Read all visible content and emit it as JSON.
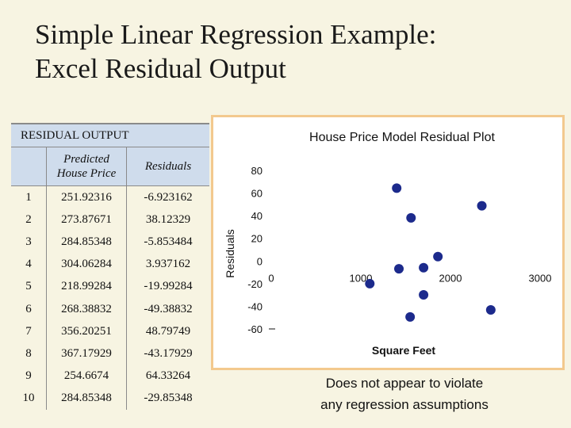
{
  "slide": {
    "title_line1": "Simple Linear Regression Example:",
    "title_line2": "Excel Residual Output"
  },
  "residual_table": {
    "title": "RESIDUAL OUTPUT",
    "col_predicted_line1": "Predicted",
    "col_predicted_line2": "House Price",
    "col_residuals": "Residuals",
    "rows": [
      {
        "obs": "1",
        "predicted": "251.92316",
        "residual": "-6.923162"
      },
      {
        "obs": "2",
        "predicted": "273.87671",
        "residual": "38.12329"
      },
      {
        "obs": "3",
        "predicted": "284.85348",
        "residual": "-5.853484"
      },
      {
        "obs": "4",
        "predicted": "304.06284",
        "residual": "3.937162"
      },
      {
        "obs": "5",
        "predicted": "218.99284",
        "residual": "-19.99284"
      },
      {
        "obs": "6",
        "predicted": "268.38832",
        "residual": "-49.38832"
      },
      {
        "obs": "7",
        "predicted": "356.20251",
        "residual": "48.79749"
      },
      {
        "obs": "8",
        "predicted": "367.17929",
        "residual": "-43.17929"
      },
      {
        "obs": "9",
        "predicted": "254.6674",
        "residual": "64.33264"
      },
      {
        "obs": "10",
        "predicted": "284.85348",
        "residual": "-29.85348"
      }
    ]
  },
  "chart_data": {
    "type": "scatter",
    "title": "House Price Model Residual Plot",
    "xlabel": "Square Feet",
    "ylabel": "Residuals",
    "xlim": [
      0,
      3000
    ],
    "ylim": [
      -60,
      80
    ],
    "x_ticks": [
      "0",
      "1000",
      "2000",
      "3000"
    ],
    "y_ticks": [
      "80",
      "60",
      "40",
      "20",
      "0",
      "-20",
      "-40",
      "-60"
    ],
    "grid": false,
    "points_color": "#1c2a8c",
    "points": [
      {
        "x": 1400,
        "y": 64.3
      },
      {
        "x": 2350,
        "y": 48.8
      },
      {
        "x": 1560,
        "y": 38.1
      },
      {
        "x": 1860,
        "y": 3.9
      },
      {
        "x": 1700,
        "y": -5.9
      },
      {
        "x": 1425,
        "y": -6.9
      },
      {
        "x": 1100,
        "y": -20.0
      },
      {
        "x": 1700,
        "y": -29.9
      },
      {
        "x": 2450,
        "y": -43.2
      },
      {
        "x": 1550,
        "y": -49.4
      }
    ]
  },
  "caption": {
    "line1": "Does not appear to violate",
    "line2": "any regression assumptions"
  }
}
